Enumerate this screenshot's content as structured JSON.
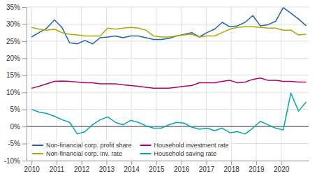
{
  "chart_data": {
    "type": "line",
    "x": [
      2010,
      2010.305556,
      2010.611111,
      2010.916667,
      2011.222222,
      2011.527778,
      2011.833333,
      2012.138889,
      2012.444444,
      2012.75,
      2013.055556,
      2013.361111,
      2013.666667,
      2013.972222,
      2014.277778,
      2014.583333,
      2014.888889,
      2015.194444,
      2015.5,
      2015.805556,
      2016.111111,
      2016.416667,
      2016.722222,
      2017.027778,
      2017.333333,
      2017.638889,
      2017.944444,
      2018.25,
      2018.555556,
      2018.861111,
      2019.166667,
      2019.472222,
      2019.777778,
      2020.083333,
      2020.388889,
      2020.694444,
      2021
    ],
    "xlim": [
      2009.8,
      2021.1
    ],
    "xticks": [
      2010,
      2011,
      2012,
      2013,
      2014,
      2015,
      2016,
      2017,
      2018,
      2019,
      2020
    ],
    "ylim": [
      -10,
      35
    ],
    "yticks": [
      {
        "value": -10,
        "label": "-10%"
      },
      {
        "value": -5,
        "label": "-5%"
      },
      {
        "value": 0,
        "label": "0%"
      },
      {
        "value": 5,
        "label": "5%"
      },
      {
        "value": 10,
        "label": "10%"
      },
      {
        "value": 15,
        "label": "15%"
      },
      {
        "value": 20,
        "label": "20%"
      },
      {
        "value": 25,
        "label": "25%"
      },
      {
        "value": 30,
        "label": "30%"
      },
      {
        "value": 35,
        "label": "35%"
      }
    ],
    "grid": true,
    "legend": "lower left",
    "series": [
      {
        "name": "Non-financial corp. profit share",
        "color": "#2166ac",
        "values": [
          26.2,
          27.5,
          28.8,
          31.2,
          29.0,
          24.5,
          24.2,
          25.2,
          24.2,
          26.0,
          26.2,
          26.5,
          26.0,
          26.5,
          26.5,
          26.0,
          25.5,
          25.5,
          25.8,
          26.5,
          27.0,
          27.5,
          26.2,
          27.5,
          28.5,
          30.5,
          29.2,
          29.5,
          30.5,
          32.5,
          29.5,
          29.8,
          30.8,
          34.8,
          33.2,
          31.5,
          29.5
        ]
      },
      {
        "name": "Household investment rate",
        "color": "#b2006e",
        "values": [
          11.2,
          11.8,
          12.5,
          13.2,
          13.3,
          13.2,
          13.0,
          12.8,
          12.8,
          12.5,
          12.5,
          12.5,
          12.2,
          12.0,
          11.8,
          11.5,
          11.2,
          11.2,
          11.2,
          11.5,
          11.8,
          12.0,
          12.8,
          12.8,
          12.8,
          13.2,
          13.5,
          12.8,
          13.0,
          13.8,
          14.2,
          13.5,
          13.5,
          13.2,
          13.2,
          13.0,
          13.0
        ]
      },
      {
        "name": "Non-financial corp. inv. rate",
        "color": "#aaaa00",
        "values": [
          29.0,
          28.5,
          28.2,
          28.5,
          27.5,
          27.0,
          26.8,
          26.5,
          26.5,
          26.5,
          28.8,
          28.5,
          28.8,
          29.0,
          28.8,
          28.2,
          26.5,
          26.2,
          26.2,
          26.5,
          26.8,
          27.0,
          26.2,
          26.5,
          26.5,
          27.5,
          28.5,
          29.0,
          29.2,
          29.2,
          29.0,
          28.8,
          28.8,
          28.2,
          28.2,
          26.8,
          27.0
        ]
      },
      {
        "name": "Household saving rate",
        "color": "#00aaaa",
        "values": [
          5.0,
          4.2,
          3.8,
          3.0,
          2.0,
          1.2,
          -2.2,
          -1.5,
          0.5,
          2.0,
          2.8,
          1.2,
          0.5,
          1.8,
          1.2,
          0.2,
          -0.5,
          -0.5,
          0.5,
          1.2,
          1.0,
          -0.2,
          -0.8,
          -0.5,
          -1.2,
          -0.5,
          -1.8,
          -1.5,
          -2.2,
          -0.5,
          1.5,
          0.5,
          -0.5,
          -1.0,
          9.8,
          4.5,
          7.2
        ]
      }
    ]
  }
}
